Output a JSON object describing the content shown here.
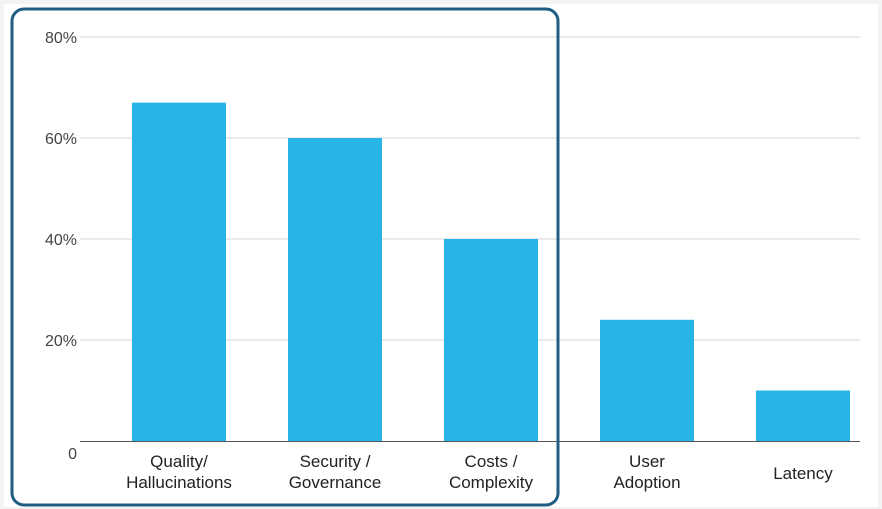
{
  "chart_data": {
    "type": "bar",
    "categories": [
      [
        "Quality/",
        "Hallucinations"
      ],
      [
        "Security /",
        "Governance"
      ],
      [
        "Costs /",
        "Complexity"
      ],
      [
        "User",
        "Adoption"
      ],
      [
        "Latency"
      ]
    ],
    "values": [
      67,
      60,
      40,
      24,
      10
    ],
    "y_ticks": [
      "0",
      "20%",
      "40%",
      "60%",
      "80%"
    ],
    "y_tick_values": [
      0,
      20,
      40,
      60,
      80
    ],
    "ylim": [
      0,
      80
    ],
    "title": "",
    "xlabel": "",
    "ylabel": "",
    "grid": true,
    "legend": "none",
    "highlight": {
      "categories": [
        0,
        1,
        2
      ],
      "color": "#1f5d85"
    }
  },
  "colors": {
    "bar": "#29b4e8",
    "grid": "#d6d6d6",
    "axis": "#555555",
    "background": "#ffffff",
    "page": "#f3f3f3"
  }
}
